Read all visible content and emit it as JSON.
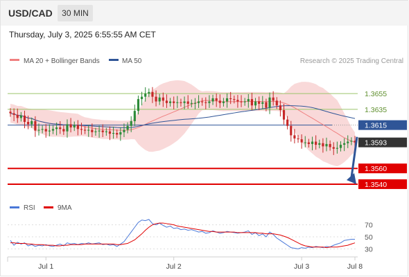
{
  "header": {
    "symbol": "USD/CAD",
    "timeframe": "30 MIN"
  },
  "timestamp": "Thursday, July 3, 2025 6:55:55 AM CET",
  "legend": {
    "items": [
      {
        "label": "MA 20 + Bollinger Bands",
        "color": "#f08080"
      },
      {
        "label": "MA 50",
        "color": "#2f5597"
      }
    ]
  },
  "credit": "Research © 2025 Trading Central",
  "colors": {
    "candle_up": "#2e8b3a",
    "candle_down": "#c62828",
    "band_fill": "#f9d9d9",
    "ma20": "#f08080",
    "ma50": "#2f5597",
    "resistance": "#9bc46b",
    "pivot": "#2f5597",
    "support": "#e00000",
    "last_price": "#333333",
    "arrow": "#2f5597",
    "rsi": "#4a78d8",
    "rsi_ma": "#e00000",
    "grid": "#dddddd"
  },
  "chart_data": [
    {
      "type": "candlestick",
      "title": "",
      "ylim": [
        1.3525,
        1.3685
      ],
      "x_ticks": [
        "Jul 1",
        "Jul 2",
        "Jul 3",
        "Jul 8"
      ],
      "x_tick_index": [
        10,
        46,
        82,
        97
      ],
      "close": [
        1.363,
        1.3628,
        1.3624,
        1.3627,
        1.3619,
        1.3616,
        1.362,
        1.3608,
        1.3609,
        1.361,
        1.3607,
        1.3608,
        1.361,
        1.3612,
        1.361,
        1.3607,
        1.3616,
        1.3612,
        1.3615,
        1.361,
        1.3609,
        1.3608,
        1.3609,
        1.3606,
        1.3607,
        1.3608,
        1.3606,
        1.3607,
        1.3604,
        1.3605,
        1.3603,
        1.3606,
        1.3609,
        1.3614,
        1.362,
        1.3633,
        1.3648,
        1.3651,
        1.3655,
        1.3657,
        1.3651,
        1.3645,
        1.365,
        1.3646,
        1.3643,
        1.3645,
        1.3643,
        1.3644,
        1.3643,
        1.3645,
        1.3642,
        1.3643,
        1.3643,
        1.3645,
        1.3644,
        1.3643,
        1.3645,
        1.3649,
        1.3646,
        1.3643,
        1.3645,
        1.3649,
        1.3648,
        1.3647,
        1.3645,
        1.3644,
        1.3645,
        1.3648,
        1.364,
        1.3645,
        1.3642,
        1.3644,
        1.3637,
        1.365,
        1.3646,
        1.364,
        1.3634,
        1.3622,
        1.3614,
        1.3602,
        1.3598,
        1.3597,
        1.3593,
        1.3593,
        1.3591,
        1.3594,
        1.359,
        1.3592,
        1.3588,
        1.3591,
        1.3587,
        1.3585,
        1.3586,
        1.359,
        1.3592,
        1.3594,
        1.3595,
        1.3593
      ],
      "levels": [
        {
          "label": "1.3655",
          "value": 1.3655,
          "kind": "resistance"
        },
        {
          "label": "1.3635",
          "value": 1.3635,
          "kind": "resistance"
        },
        {
          "label": "1.3615",
          "value": 1.3615,
          "kind": "pivot"
        },
        {
          "label": "1.3593",
          "value": 1.3593,
          "kind": "last"
        },
        {
          "label": "1.3560",
          "value": 1.356,
          "kind": "support"
        },
        {
          "label": "1.3540",
          "value": 1.354,
          "kind": "support"
        }
      ],
      "ma_period_short": 20,
      "ma_period_long": 50,
      "bollinger_multiplier": 2,
      "target_arrow": {
        "from_value": 1.36,
        "to_value": 1.354
      }
    },
    {
      "type": "line",
      "legend": [
        {
          "label": "RSI",
          "color": "#4a78d8"
        },
        {
          "label": "9MA",
          "color": "#e00000"
        }
      ],
      "ylim": [
        20,
        80
      ],
      "y_ticks": [
        "70",
        "50",
        "30"
      ],
      "y_tick_values": [
        70,
        50,
        30
      ],
      "series": [
        {
          "name": "RSI",
          "values": [
            44,
            36,
            41,
            38,
            40,
            35,
            37,
            34,
            36,
            35,
            37,
            35,
            34,
            36,
            38,
            35,
            40,
            38,
            39,
            37,
            39,
            38,
            40,
            38,
            39,
            40,
            37,
            38,
            36,
            37,
            34,
            38,
            42,
            50,
            58,
            66,
            74,
            78,
            77,
            79,
            72,
            70,
            73,
            69,
            66,
            68,
            64,
            65,
            62,
            63,
            61,
            62,
            60,
            58,
            59,
            56,
            57,
            60,
            58,
            56,
            57,
            59,
            58,
            57,
            56,
            57,
            58,
            60,
            54,
            57,
            52,
            55,
            50,
            58,
            54,
            48,
            44,
            40,
            36,
            32,
            31,
            30,
            32,
            31,
            33,
            32,
            34,
            33,
            32,
            34,
            33,
            36,
            38,
            40,
            44,
            45,
            46,
            46
          ]
        },
        {
          "name": "9MA",
          "values": [
            40,
            40,
            39,
            39,
            39,
            38,
            38,
            37,
            37,
            37,
            36,
            36,
            36,
            35,
            35,
            36,
            36,
            37,
            37,
            37,
            37,
            38,
            38,
            38,
            38,
            38,
            38,
            38,
            38,
            38,
            37,
            37,
            38,
            39,
            42,
            45,
            50,
            55,
            61,
            66,
            70,
            72,
            73,
            73,
            72,
            71,
            70,
            68,
            67,
            66,
            65,
            64,
            63,
            62,
            61,
            60,
            59,
            59,
            58,
            58,
            58,
            58,
            58,
            58,
            57,
            57,
            57,
            57,
            57,
            57,
            56,
            56,
            55,
            55,
            55,
            54,
            53,
            51,
            49,
            46,
            43,
            40,
            37,
            35,
            34,
            33,
            33,
            33,
            33,
            32,
            33,
            33,
            33,
            34,
            35,
            36,
            38,
            40
          ]
        }
      ]
    }
  ]
}
